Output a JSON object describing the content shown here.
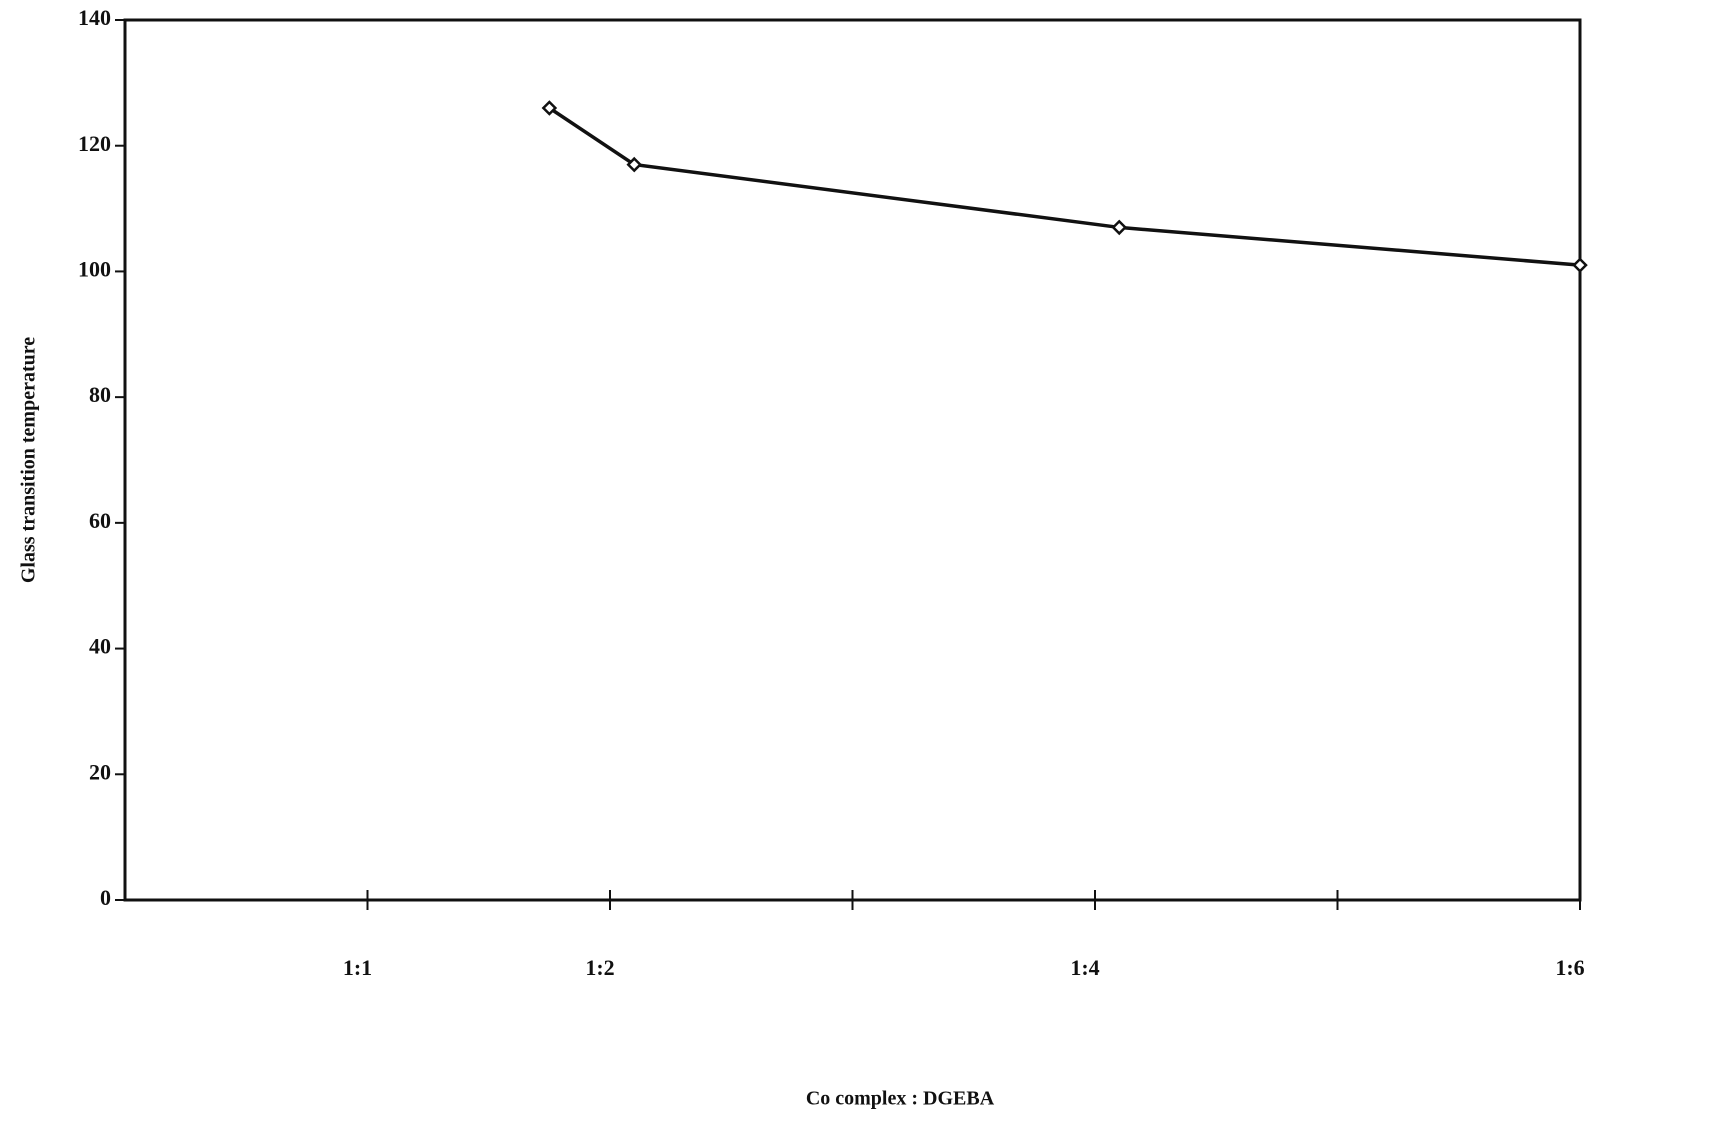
{
  "chart_data": {
    "type": "line",
    "x_label": "Co complex : DGEBA",
    "y_label": "Glass transition temperature",
    "x": [
      1.75,
      2.1,
      4.1,
      6
    ],
    "series": [
      {
        "color": "#111111",
        "values": [
          126,
          117,
          107,
          101
        ]
      }
    ],
    "xlim": [
      0,
      6
    ],
    "xticks": [
      {
        "value": 1,
        "label": "1:1"
      },
      {
        "value": 2,
        "label": "1:2"
      },
      {
        "value": 3,
        "label": null
      },
      {
        "value": 4,
        "label": "1:4"
      },
      {
        "value": 5,
        "label": null
      },
      {
        "value": 6,
        "label": "1:6"
      }
    ],
    "ylim": [
      0,
      140
    ],
    "yticks": [
      0,
      20,
      40,
      60,
      80,
      100,
      120,
      140
    ],
    "grid": false,
    "markers": "diamond"
  }
}
